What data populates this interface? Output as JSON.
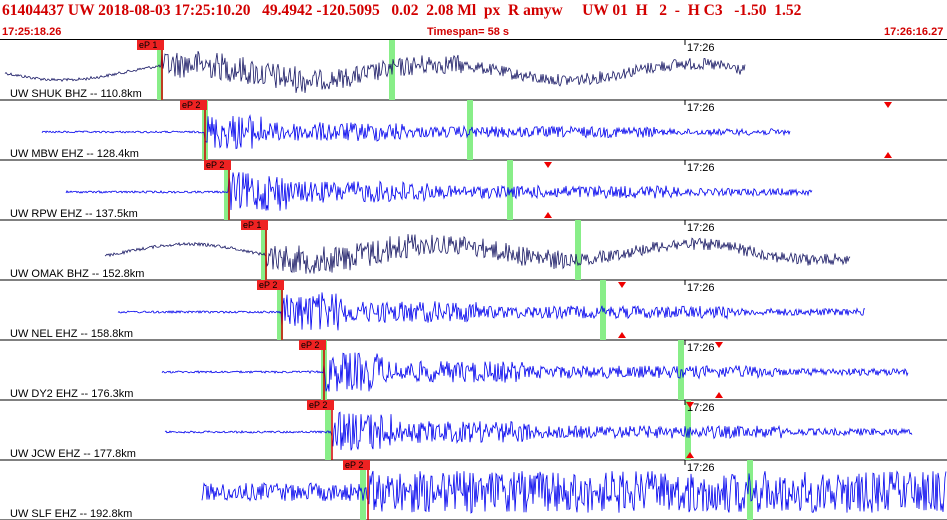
{
  "header": {
    "title": "61404437 UW 2018-08-03 17:25:10.20   49.4942 -120.5095   0.02  2.08 Ml  px  R amyw     UW 01  H   2  -  H C3   -1.50  1.52",
    "start_time": "17:25:18.26",
    "timespan": "Timespan=  58 s",
    "end_time": "17:26:16.27"
  },
  "traces": [
    {
      "label": "UW SHUK BHZ -- 110.8km",
      "pick_label": "eP 1",
      "time_tick": "17:26",
      "color": "#1a1a66",
      "amp": 1.0
    },
    {
      "label": "UW MBW EHZ -- 128.4km",
      "pick_label": "eP 2",
      "time_tick": "17:26",
      "color": "#0000ee",
      "amp": 0.8
    },
    {
      "label": "UW RPW EHZ -- 137.5km",
      "pick_label": "eP 2",
      "time_tick": "17:26",
      "color": "#0000ee",
      "amp": 0.9
    },
    {
      "label": "UW OMAK BHZ -- 152.8km",
      "pick_label": "eP 1",
      "time_tick": "17:26",
      "color": "#1a1a66",
      "amp": 1.0
    },
    {
      "label": "UW NEL EHZ -- 158.8km",
      "pick_label": "eP 2",
      "time_tick": "17:26",
      "color": "#0000ee",
      "amp": 0.9
    },
    {
      "label": "UW DY2 EHZ -- 176.3km",
      "pick_label": "eP 2",
      "time_tick": "17:26",
      "color": "#0000ee",
      "amp": 0.9
    },
    {
      "label": "UW JCW EHZ -- 177.8km",
      "pick_label": "eP 2",
      "time_tick": "17:26",
      "color": "#0000ee",
      "amp": 0.9
    },
    {
      "label": "UW SLF EHZ -- 192.8km",
      "pick_label": "eP 2",
      "time_tick": "17:26",
      "color": "#0000ee",
      "amp": 1.0
    }
  ]
}
